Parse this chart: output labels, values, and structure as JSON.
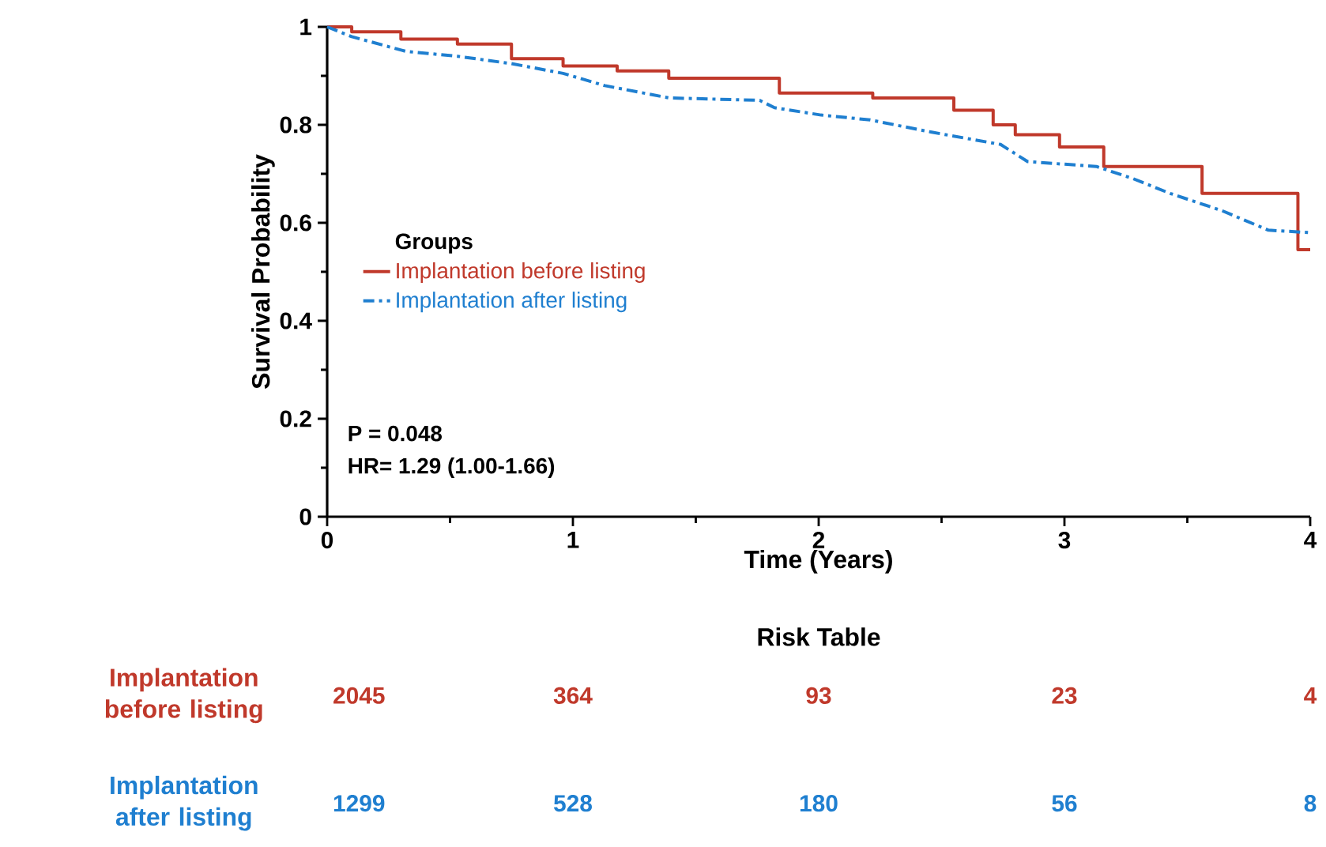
{
  "chart_data": {
    "type": "line",
    "xlabel": "Time (Years)",
    "ylabel": "Survival Probability",
    "legend_title": "Groups",
    "xlim": [
      0,
      4
    ],
    "ylim": [
      0,
      1
    ],
    "xticks": [
      0,
      1,
      2,
      3,
      4
    ],
    "yticks": [
      0,
      0.2,
      0.4,
      0.6,
      0.8,
      1
    ],
    "legend": "left",
    "grid": false,
    "marker": "none",
    "series": [
      {
        "name": "Implantation before listing",
        "type": "step",
        "color": "#c0392b",
        "line_style": "solid",
        "x": [
          0,
          0.1,
          0.3,
          0.53,
          0.75,
          0.96,
          1.18,
          1.39,
          1.84,
          2.22,
          2.55,
          2.71,
          2.8,
          2.98,
          3.16,
          3.56,
          3.95,
          4.0
        ],
        "values": [
          1.0,
          0.99,
          0.975,
          0.965,
          0.935,
          0.92,
          0.91,
          0.895,
          0.865,
          0.855,
          0.83,
          0.8,
          0.78,
          0.755,
          0.715,
          0.66,
          0.545,
          0.545
        ]
      },
      {
        "name": "Implantation after listing",
        "color": "#1f7fd0",
        "line_style": "dashed",
        "x": [
          0,
          0.1,
          0.32,
          0.53,
          0.75,
          0.96,
          1.13,
          1.39,
          1.76,
          1.82,
          2.01,
          2.21,
          2.46,
          2.74,
          2.85,
          3.13,
          3.28,
          3.43,
          3.64,
          3.83,
          4.0
        ],
        "values": [
          1.0,
          0.98,
          0.95,
          0.94,
          0.925,
          0.905,
          0.88,
          0.855,
          0.85,
          0.835,
          0.82,
          0.81,
          0.785,
          0.76,
          0.725,
          0.715,
          0.69,
          0.66,
          0.625,
          0.585,
          0.58
        ]
      }
    ],
    "annotations": [
      "P = 0.048",
      "HR= 1.29 (1.00-1.66)",
      "Risk Table",
      "Implantation before listing",
      "2045",
      "364",
      "93",
      "23",
      "4",
      "Implantation after listing",
      "1299",
      "528",
      "180",
      "56",
      "8"
    ]
  }
}
